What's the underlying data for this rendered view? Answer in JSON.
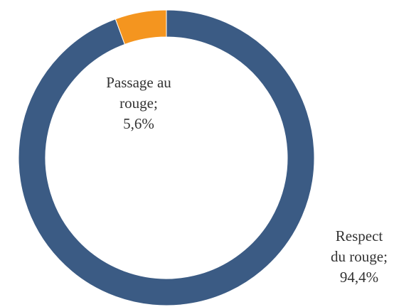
{
  "chart_data": {
    "type": "donut",
    "categories": [
      "Respect du rouge;",
      "Passage au rouge;"
    ],
    "values": [
      94.4,
      5.6
    ],
    "value_labels": [
      "94,4%",
      "5,6%"
    ],
    "colors": [
      "#3b5b84",
      "#f4951f"
    ]
  }
}
